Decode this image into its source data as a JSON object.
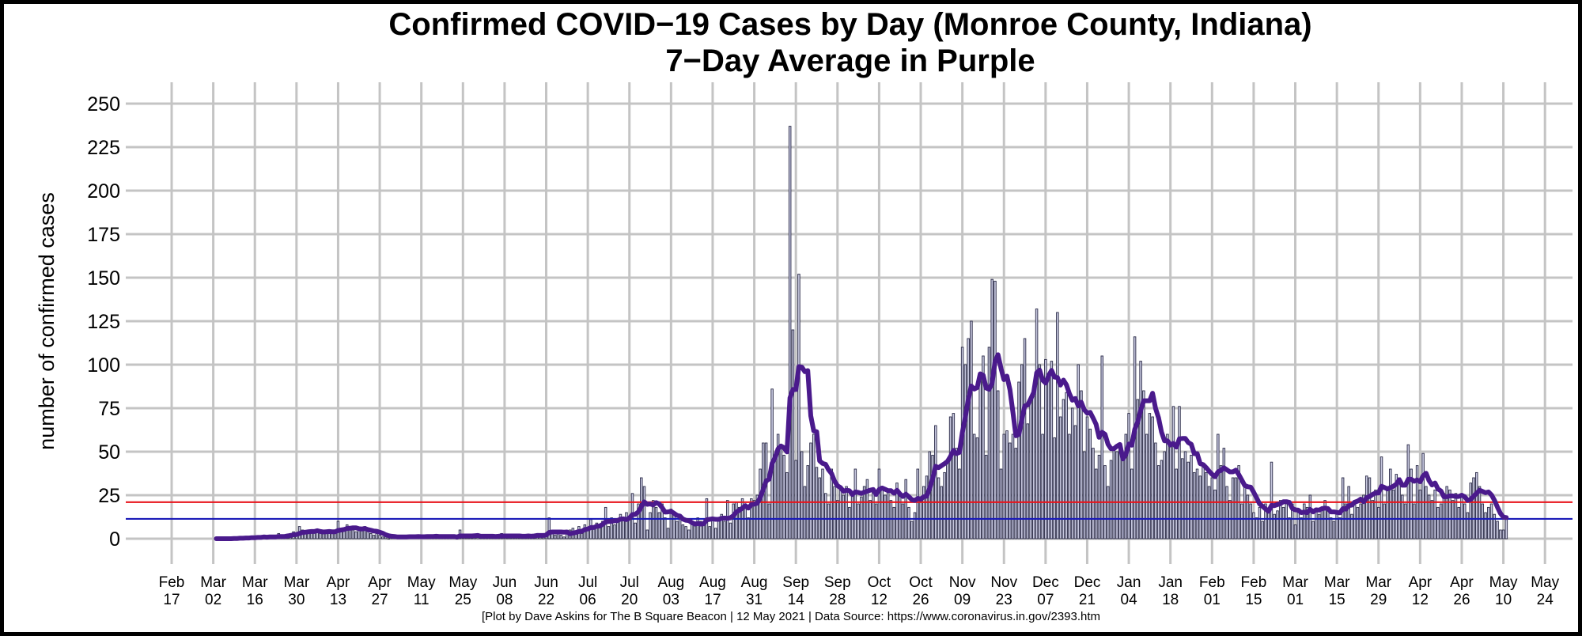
{
  "chart_data": {
    "type": "bar",
    "title": "Confirmed COVID−19 Cases by Day (Monroe County, Indiana)",
    "subtitle": "7−Day Average in Purple",
    "xlabel": "",
    "ylabel": "number of confirmed cases",
    "caption": "[Plot by Dave Askins for The B Square Beacon | 12 May 2021 | Data Source: https://www.coronavirus.in.gov/2393.htm",
    "ylim": [
      0,
      250
    ],
    "yticks": [
      0,
      25,
      50,
      75,
      100,
      125,
      150,
      175,
      200,
      225,
      250
    ],
    "xlim": [
      "2020-02-17",
      "2021-05-24"
    ],
    "grid": true,
    "xtick_start": "2020-02-17",
    "xtick_interval_days": 14,
    "xticks": [
      [
        "Feb",
        "17"
      ],
      [
        "Mar",
        "02"
      ],
      [
        "Mar",
        "16"
      ],
      [
        "Mar",
        "30"
      ],
      [
        "Apr",
        "13"
      ],
      [
        "Apr",
        "27"
      ],
      [
        "May",
        "11"
      ],
      [
        "May",
        "25"
      ],
      [
        "Jun",
        "08"
      ],
      [
        "Jun",
        "22"
      ],
      [
        "Jul",
        "06"
      ],
      [
        "Jul",
        "20"
      ],
      [
        "Aug",
        "03"
      ],
      [
        "Aug",
        "17"
      ],
      [
        "Aug",
        "31"
      ],
      [
        "Sep",
        "14"
      ],
      [
        "Sep",
        "28"
      ],
      [
        "Oct",
        "12"
      ],
      [
        "Oct",
        "26"
      ],
      [
        "Nov",
        "09"
      ],
      [
        "Nov",
        "23"
      ],
      [
        "Dec",
        "07"
      ],
      [
        "Dec",
        "21"
      ],
      [
        "Jan",
        "04"
      ],
      [
        "Jan",
        "18"
      ],
      [
        "Feb",
        "01"
      ],
      [
        "Feb",
        "15"
      ],
      [
        "Mar",
        "01"
      ],
      [
        "Mar",
        "15"
      ],
      [
        "Mar",
        "29"
      ],
      [
        "Apr",
        "12"
      ],
      [
        "Apr",
        "26"
      ],
      [
        "May",
        "10"
      ],
      [
        "May",
        "24"
      ]
    ],
    "series": [
      {
        "name": "Daily confirmed cases",
        "kind": "bar",
        "color": "#c6c7de",
        "start_date": "2020-03-03",
        "values": [
          0,
          0,
          0,
          0,
          0,
          0,
          1,
          0,
          1,
          0,
          1,
          0,
          1,
          1,
          1,
          1,
          2,
          0,
          1,
          1,
          1,
          3,
          1,
          2,
          2,
          3,
          4,
          2,
          7,
          5,
          3,
          4,
          4,
          4,
          5,
          4,
          3,
          4,
          5,
          3,
          4,
          10,
          6,
          5,
          8,
          6,
          5,
          4,
          6,
          5,
          7,
          4,
          3,
          2,
          3,
          2,
          1,
          1,
          0,
          1,
          1,
          1,
          2,
          1,
          1,
          1,
          1,
          1,
          2,
          1,
          1,
          2,
          1,
          1,
          2,
          1,
          1,
          1,
          2,
          1,
          1,
          0,
          5,
          1,
          1,
          2,
          1,
          2,
          1,
          2,
          1,
          1,
          2,
          1,
          1,
          2,
          3,
          1,
          1,
          2,
          1,
          1,
          2,
          2,
          1,
          2,
          1,
          2,
          3,
          2,
          2,
          3,
          12,
          3,
          2,
          3,
          2,
          1,
          4,
          5,
          6,
          4,
          7,
          3,
          8,
          6,
          11,
          6,
          9,
          8,
          10,
          18,
          7,
          12,
          8,
          10,
          14,
          11,
          15,
          13,
          26,
          9,
          20,
          35,
          30,
          5,
          15,
          22,
          18,
          15,
          20,
          12,
          6,
          17,
          14,
          10,
          12,
          8,
          7,
          5,
          9,
          8,
          12,
          10,
          9,
          23,
          7,
          11,
          6,
          12,
          14,
          10,
          22,
          9,
          20,
          21,
          18,
          23,
          20,
          12,
          23,
          22,
          25,
          40,
          55,
          55,
          20,
          86,
          45,
          60,
          52,
          48,
          38,
          237,
          120,
          45,
          152,
          50,
          30,
          42,
          55,
          60,
          41,
          35,
          40,
          26,
          20,
          40,
          30,
          22,
          28,
          25,
          30,
          18,
          25,
          40,
          20,
          24,
          30,
          34,
          22,
          28,
          20,
          40,
          30,
          25,
          28,
          22,
          18,
          32,
          25,
          20,
          34,
          18,
          10,
          15,
          40,
          22,
          30,
          36,
          50,
          48,
          65,
          35,
          30,
          38,
          45,
          70,
          72,
          52,
          40,
          110,
          100,
          115,
          125,
          60,
          58,
          95,
          105,
          48,
          110,
          149,
          148,
          85,
          40,
          60,
          62,
          55,
          60,
          52,
          90,
          100,
          115,
          66,
          80,
          85,
          132,
          100,
          60,
          103,
          95,
          102,
          58,
          130,
          70,
          80,
          84,
          60,
          75,
          65,
          100,
          85,
          50,
          70,
          63,
          52,
          40,
          48,
          105,
          42,
          30,
          45,
          52,
          50,
          55,
          47,
          60,
          72,
          40,
          116,
          80,
          102,
          85,
          60,
          72,
          70,
          55,
          42,
          45,
          50,
          60,
          55,
          76,
          40,
          76,
          46,
          50,
          44,
          48,
          38,
          40,
          36,
          42,
          38,
          30,
          35,
          28,
          60,
          42,
          52,
          30,
          22,
          35,
          35,
          42,
          20,
          30,
          25,
          20,
          15,
          12,
          18,
          10,
          20,
          15,
          44,
          14,
          16,
          22,
          18,
          20,
          12,
          20,
          8,
          15,
          12,
          20,
          18,
          25,
          10,
          16,
          14,
          18,
          22,
          16,
          12,
          10,
          14,
          12,
          35,
          20,
          30,
          14,
          22,
          18,
          20,
          25,
          36,
          35,
          22,
          28,
          18,
          47,
          20,
          30,
          40,
          28,
          37,
          35,
          25,
          20,
          54,
          40,
          20,
          42,
          28,
          49,
          30,
          25,
          22,
          28,
          18,
          20,
          26,
          30,
          28,
          22,
          26,
          18,
          25,
          20,
          15,
          32,
          35,
          38,
          30,
          20,
          15,
          18,
          20,
          14,
          10,
          5,
          5,
          13
        ]
      },
      {
        "name": "7-Day Average",
        "kind": "line",
        "color": "#4a1a8c",
        "window_days": 7
      }
    ],
    "reference_lines": [
      {
        "value": 21,
        "color": "#e8141c"
      },
      {
        "value": 11.4,
        "color": "#1a1ab8"
      }
    ]
  }
}
